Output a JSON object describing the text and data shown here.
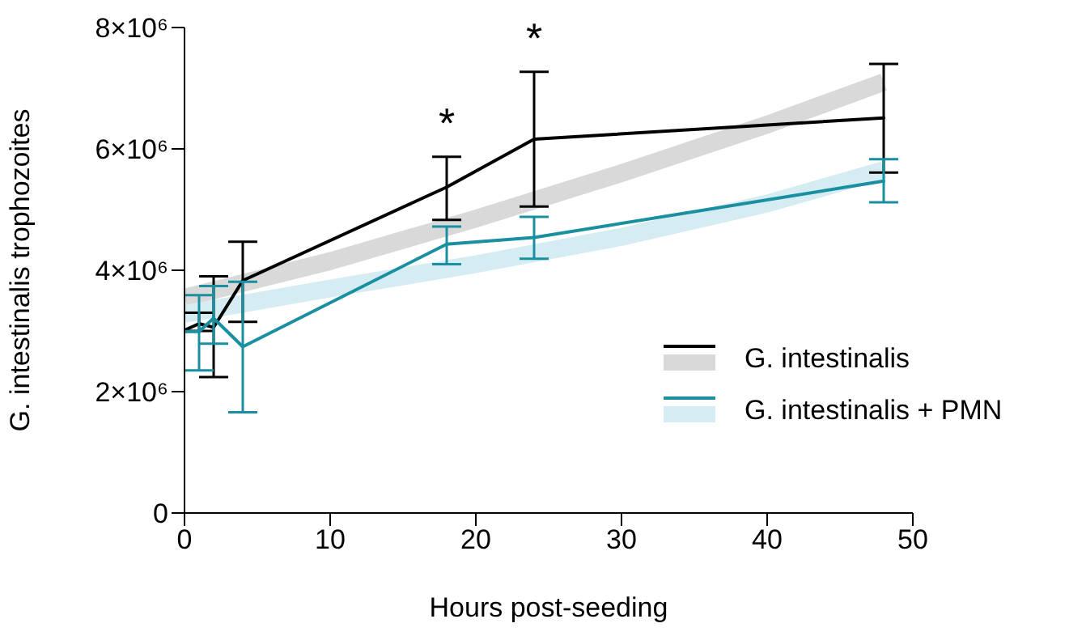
{
  "chart_data": {
    "type": "line",
    "xlabel": "Hours post-seeding",
    "ylabel": "G. intestinalis trophozoites",
    "x": [
      0,
      1,
      2,
      4,
      18,
      24,
      48
    ],
    "series": [
      {
        "name": "G. intestinalis",
        "color": "#000000",
        "values": [
          3010000,
          3120000,
          3060000,
          3830000,
          5370000,
          6160000,
          6510000
        ],
        "errors": [
          null,
          [
            3000000,
            3300000
          ],
          [
            2240000,
            3900000
          ],
          [
            3150000,
            4470000
          ],
          [
            4830000,
            5870000
          ],
          [
            5050000,
            7270000
          ],
          [
            5610000,
            7400000
          ]
        ]
      },
      {
        "color": "#d9d9d9",
        "x": [
          0,
          10,
          20,
          30,
          40,
          48
        ],
        "values": [
          3550000,
          4150000,
          4850000,
          5600000,
          6400000,
          7100000
        ]
      },
      {
        "name": "G. intestinalis + PMN",
        "color": "#1a8fa0",
        "values": [
          2990000,
          2990000,
          3210000,
          2740000,
          4430000,
          4540000,
          5470000
        ],
        "errors": [
          null,
          [
            2350000,
            3590000
          ],
          [
            2790000,
            3740000
          ],
          [
            1660000,
            3810000
          ],
          [
            4100000,
            4720000
          ],
          [
            4190000,
            4880000
          ],
          [
            5120000,
            5830000
          ]
        ]
      },
      {
        "color": "#d5ecf3",
        "x": [
          0,
          10,
          20,
          30,
          40,
          48
        ],
        "values": [
          3280000,
          3700000,
          4100000,
          4550000,
          5100000,
          5650000
        ]
      }
    ],
    "annotations": [
      {
        "text": "*",
        "x": 18,
        "y": 5870000
      },
      {
        "text": "*",
        "x": 24,
        "y": 7270000
      }
    ],
    "xlim": [
      0,
      50
    ],
    "xticks": [
      0,
      10,
      20,
      30,
      40,
      50
    ],
    "ylim": [
      0,
      8000000
    ],
    "yticks": [
      {
        "value": 0,
        "label": "0"
      },
      {
        "value": 2000000,
        "label": "2×10⁶"
      },
      {
        "value": 4000000,
        "label": "4×10⁶"
      },
      {
        "value": 6000000,
        "label": "6×10⁶"
      },
      {
        "value": 8000000,
        "label": "8×10⁶"
      }
    ],
    "legend": "bottom right",
    "grid": false,
    "marker": "none",
    "line_style": "solid"
  }
}
